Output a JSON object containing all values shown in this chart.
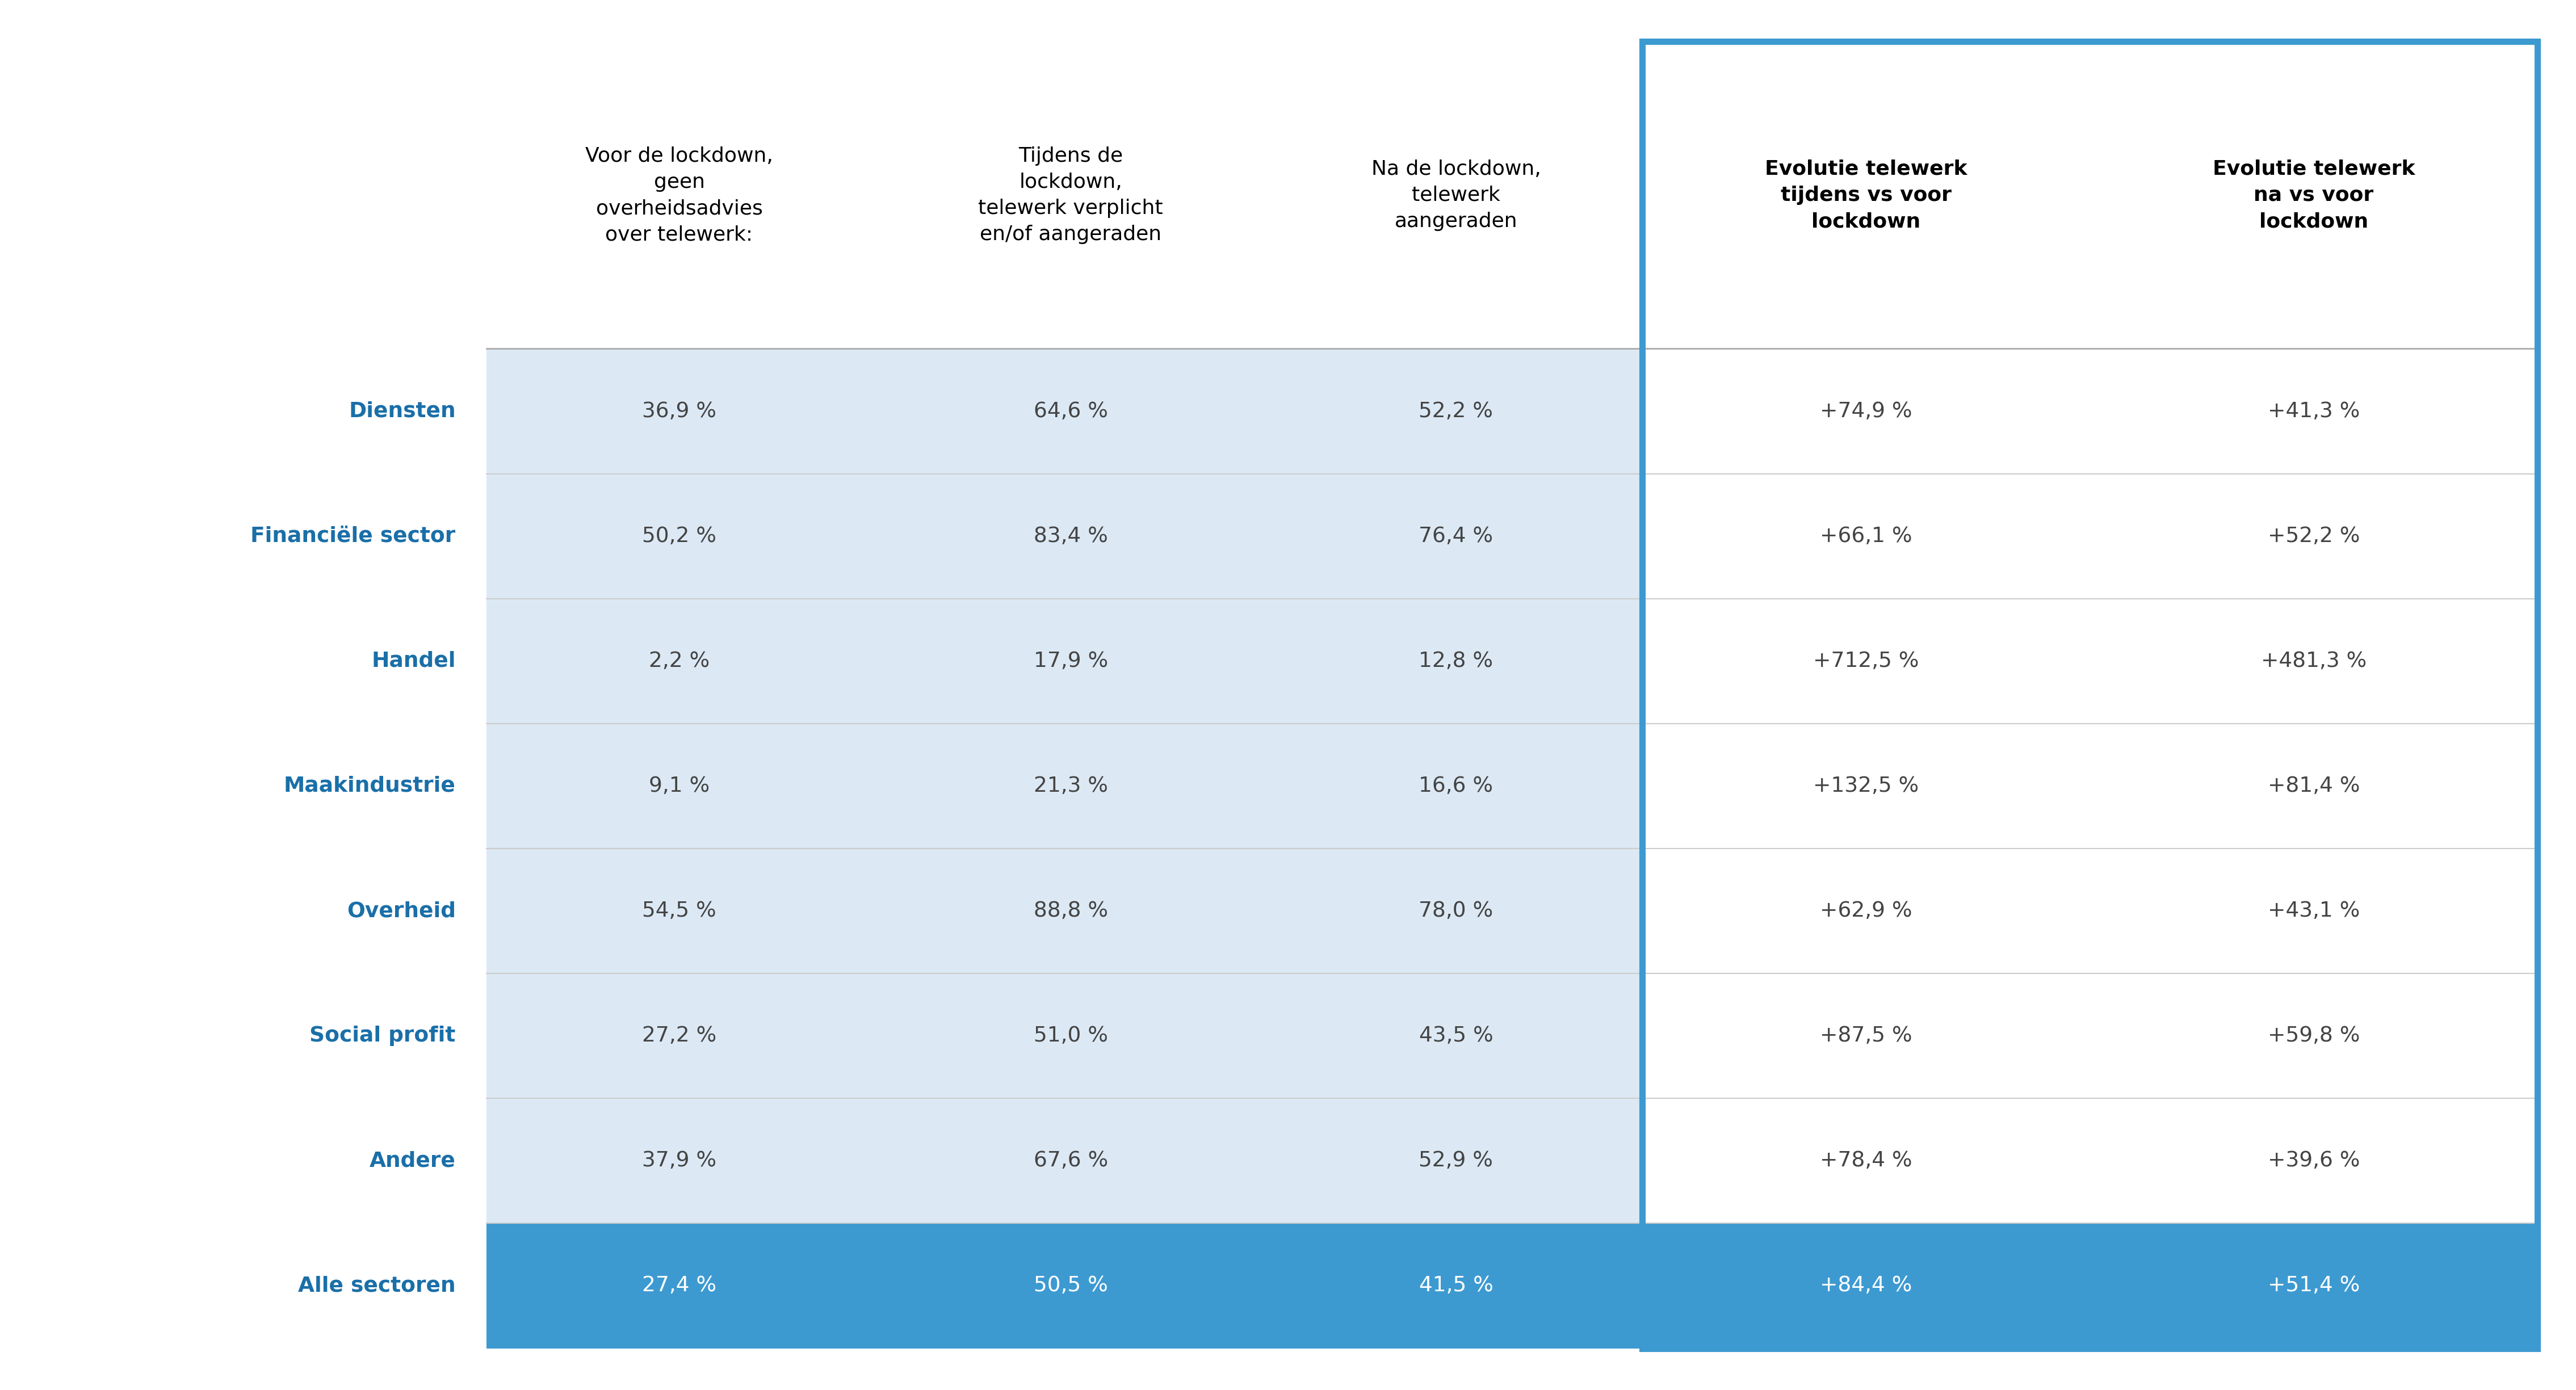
{
  "rows": [
    {
      "sector": "Diensten",
      "col1": "36,9 %",
      "col2": "64,6 %",
      "col3": "52,2 %",
      "col4": "+74,9 %",
      "col5": "+41,3 %"
    },
    {
      "sector": "Financiële sector",
      "col1": "50,2 %",
      "col2": "83,4 %",
      "col3": "76,4 %",
      "col4": "+66,1 %",
      "col5": "+52,2 %"
    },
    {
      "sector": "Handel",
      "col1": "2,2 %",
      "col2": "17,9 %",
      "col3": "12,8 %",
      "col4": "+712,5 %",
      "col5": "+481,3 %"
    },
    {
      "sector": "Maakindustrie",
      "col1": "9,1 %",
      "col2": "21,3 %",
      "col3": "16,6 %",
      "col4": "+132,5 %",
      "col5": "+81,4 %"
    },
    {
      "sector": "Overheid",
      "col1": "54,5 %",
      "col2": "88,8 %",
      "col3": "78,0 %",
      "col4": "+62,9 %",
      "col5": "+43,1 %"
    },
    {
      "sector": "Social profit",
      "col1": "27,2 %",
      "col2": "51,0 %",
      "col3": "43,5 %",
      "col4": "+87,5 %",
      "col5": "+59,8 %"
    },
    {
      "sector": "Andere",
      "col1": "37,9 %",
      "col2": "67,6 %",
      "col3": "52,9 %",
      "col4": "+78,4 %",
      "col5": "+39,6 %"
    },
    {
      "sector": "Alle sectoren",
      "col1": "27,4 %",
      "col2": "50,5 %",
      "col3": "41,5 %",
      "col4": "+84,4 %",
      "col5": "+51,4 %"
    }
  ],
  "headers": [
    "Voor de lockdown,\ngeen\noverheidsadvies\nover telewerk:",
    "Tijdens de\nlockdown,\ntelewerk verplicht\nen/of aangeraden",
    "Na de lockdown,\ntelewerk\naangeraden",
    "Evolutie telewerk\ntijdens vs voor\nlockdown",
    "Evolutie telewerk\nna vs voor\nlockdown"
  ],
  "light_bg_color": "#dce9f5",
  "dark_bg_color": "#3d9ad1",
  "header_color": "#000000",
  "sector_color": "#1a6fa8",
  "data_text_color": "#444444",
  "allsectoren_text_color": "#ffffff",
  "border_color": "#3d9ad1",
  "background_color": "#ffffff",
  "grid_color": "#cccccc",
  "sep_color": "#aaaaaa"
}
